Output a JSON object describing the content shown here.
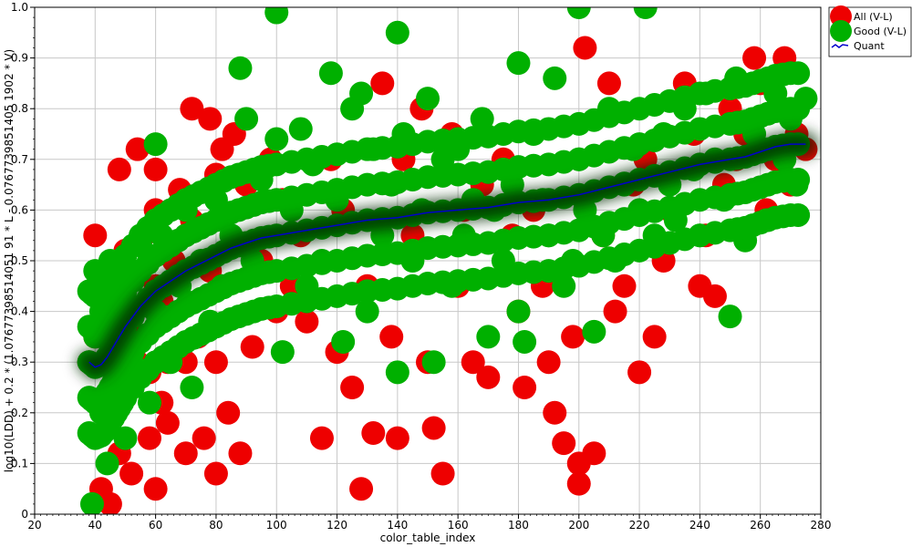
{
  "chart_data": {
    "type": "scatter",
    "xlabel": "color_table_index",
    "ylabel": "log10(LDD) + 0.2 * (1.07677398514051 91 * L - 0.0767739851405 1902 * V)",
    "xlim": [
      20,
      280
    ],
    "ylim": [
      0,
      1.0
    ],
    "xticks": [
      20,
      40,
      60,
      80,
      100,
      120,
      140,
      160,
      180,
      200,
      220,
      240,
      260,
      280
    ],
    "xtick_labels": [
      "20",
      "40",
      "60",
      "80",
      "100",
      "120",
      "140",
      "160",
      "180",
      "200",
      "220",
      "240",
      "260",
      "280"
    ],
    "yticks": [
      0,
      0.1,
      0.2,
      0.3,
      0.4,
      0.5,
      0.6,
      0.7,
      0.8,
      0.9,
      1.0
    ],
    "ytick_labels": [
      "0",
      "0.1",
      "0.2",
      "0.3",
      "0.4",
      "0.5",
      "0.6",
      "0.7",
      "0.8",
      "0.9",
      "1.0"
    ],
    "grid": true,
    "legend_position": "top-right",
    "series": [
      {
        "name": "All (V-L)",
        "color": "#ee0000",
        "marker": "circle",
        "x": [
          38,
          40,
          40,
          42,
          44,
          45,
          45,
          46,
          48,
          48,
          50,
          50,
          52,
          52,
          54,
          54,
          56,
          56,
          58,
          58,
          60,
          60,
          60,
          60,
          62,
          62,
          64,
          64,
          66,
          68,
          70,
          70,
          72,
          72,
          74,
          76,
          78,
          78,
          80,
          80,
          80,
          82,
          84,
          86,
          88,
          90,
          92,
          95,
          98,
          100,
          102,
          105,
          108,
          110,
          115,
          118,
          120,
          122,
          125,
          128,
          130,
          132,
          135,
          138,
          140,
          142,
          145,
          148,
          150,
          152,
          155,
          158,
          160,
          162,
          165,
          168,
          170,
          175,
          178,
          180,
          182,
          185,
          188,
          190,
          192,
          195,
          198,
          200,
          200,
          202,
          205,
          208,
          210,
          212,
          215,
          218,
          220,
          222,
          225,
          228,
          230,
          235,
          238,
          240,
          242,
          245,
          248,
          250,
          252,
          255,
          258,
          260,
          262,
          265,
          268,
          270,
          272,
          275
        ],
        "y": [
          0.3,
          0.55,
          0.35,
          0.05,
          0.2,
          0.02,
          0.45,
          0.3,
          0.12,
          0.68,
          0.25,
          0.52,
          0.4,
          0.08,
          0.72,
          0.3,
          0.55,
          0.35,
          0.28,
          0.15,
          0.05,
          0.68,
          0.6,
          0.45,
          0.42,
          0.22,
          0.3,
          0.18,
          0.5,
          0.64,
          0.3,
          0.12,
          0.58,
          0.8,
          0.35,
          0.15,
          0.78,
          0.48,
          0.08,
          0.67,
          0.3,
          0.72,
          0.2,
          0.75,
          0.12,
          0.65,
          0.33,
          0.5,
          0.7,
          0.4,
          0.62,
          0.45,
          0.55,
          0.38,
          0.15,
          0.7,
          0.32,
          0.6,
          0.25,
          0.05,
          0.45,
          0.16,
          0.85,
          0.35,
          0.15,
          0.7,
          0.55,
          0.8,
          0.3,
          0.17,
          0.08,
          0.75,
          0.45,
          0.6,
          0.3,
          0.65,
          0.27,
          0.7,
          0.55,
          0.4,
          0.25,
          0.6,
          0.45,
          0.3,
          0.2,
          0.14,
          0.35,
          0.1,
          0.06,
          0.92,
          0.12,
          0.55,
          0.85,
          0.4,
          0.45,
          0.65,
          0.28,
          0.7,
          0.35,
          0.5,
          0.6,
          0.85,
          0.75,
          0.45,
          0.55,
          0.43,
          0.65,
          0.8,
          0.7,
          0.75,
          0.9,
          0.85,
          0.6,
          0.7,
          0.9,
          0.65,
          0.75,
          0.72
        ]
      },
      {
        "name": "Good (V-L)",
        "color": "#00b000",
        "marker": "circle",
        "x": [
          38,
          39,
          40,
          40,
          42,
          42,
          44,
          45,
          46,
          48,
          50,
          50,
          52,
          55,
          58,
          60,
          60,
          62,
          65,
          68,
          70,
          72,
          75,
          78,
          80,
          82,
          85,
          88,
          90,
          92,
          95,
          100,
          100,
          102,
          105,
          108,
          110,
          112,
          115,
          118,
          120,
          122,
          125,
          128,
          130,
          132,
          135,
          138,
          140,
          140,
          142,
          145,
          148,
          150,
          152,
          155,
          158,
          160,
          162,
          165,
          168,
          170,
          172,
          175,
          178,
          180,
          180,
          182,
          185,
          188,
          190,
          192,
          195,
          198,
          200,
          200,
          202,
          205,
          208,
          210,
          212,
          215,
          218,
          220,
          222,
          225,
          228,
          230,
          232,
          235,
          238,
          240,
          242,
          245,
          248,
          250,
          252,
          255,
          258,
          260,
          262,
          265,
          268,
          270,
          272,
          275
        ],
        "y": [
          0.3,
          0.02,
          0.48,
          0.35,
          0.2,
          0.4,
          0.1,
          0.5,
          0.35,
          0.45,
          0.15,
          0.48,
          0.3,
          0.53,
          0.22,
          0.73,
          0.4,
          0.55,
          0.3,
          0.45,
          0.6,
          0.25,
          0.5,
          0.38,
          0.62,
          0.45,
          0.55,
          0.88,
          0.78,
          0.5,
          0.66,
          0.99,
          0.74,
          0.32,
          0.6,
          0.76,
          0.45,
          0.69,
          0.5,
          0.87,
          0.62,
          0.34,
          0.8,
          0.83,
          0.4,
          0.72,
          0.55,
          0.65,
          0.95,
          0.28,
          0.75,
          0.5,
          0.6,
          0.82,
          0.3,
          0.7,
          0.45,
          0.72,
          0.55,
          0.62,
          0.78,
          0.35,
          0.6,
          0.5,
          0.65,
          0.89,
          0.4,
          0.34,
          0.75,
          0.62,
          0.55,
          0.86,
          0.45,
          0.5,
          1.0,
          0.7,
          0.6,
          0.36,
          0.55,
          0.8,
          0.5,
          0.65,
          0.72,
          0.6,
          1.0,
          0.55,
          0.75,
          0.65,
          0.58,
          0.8,
          0.68,
          0.55,
          0.83,
          0.7,
          0.62,
          0.39,
          0.86,
          0.54,
          0.75,
          0.72,
          0.58,
          0.83,
          0.7,
          0.78,
          0.65,
          0.82
        ]
      },
      {
        "name": "Quant",
        "color": "#0000cc",
        "marker": "line",
        "x": [
          38,
          40,
          42,
          44,
          46,
          48,
          50,
          55,
          60,
          65,
          70,
          75,
          80,
          85,
          90,
          95,
          100,
          110,
          120,
          130,
          140,
          150,
          160,
          170,
          180,
          190,
          200,
          210,
          220,
          230,
          240,
          250,
          255,
          260,
          265,
          270,
          275
        ],
        "y": [
          0.3,
          0.29,
          0.295,
          0.31,
          0.33,
          0.35,
          0.37,
          0.41,
          0.44,
          0.46,
          0.48,
          0.495,
          0.51,
          0.525,
          0.535,
          0.545,
          0.55,
          0.56,
          0.57,
          0.58,
          0.585,
          0.595,
          0.6,
          0.605,
          0.615,
          0.62,
          0.63,
          0.645,
          0.66,
          0.675,
          0.69,
          0.7,
          0.705,
          0.715,
          0.725,
          0.73,
          0.73
        ]
      }
    ]
  }
}
